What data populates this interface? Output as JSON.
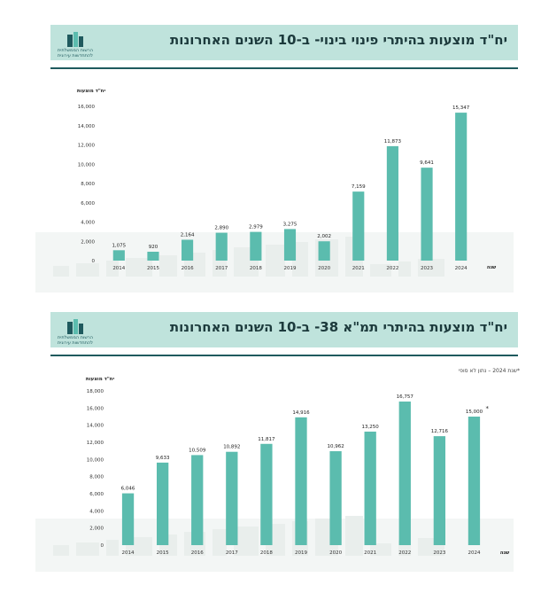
{
  "panels": [
    {
      "title": "יח\"ד מוצעות בהיתרי פינוי בינוי- ב-10 השנים האחרונות",
      "logo_text": [
        "הרשות הממשלתית",
        "להתחדשות עירונית"
      ],
      "note": "",
      "chart_data": {
        "type": "bar",
        "title": "יח\"ד מוצעות בהיתרי פינוי בינוי- ב-10 השנים האחרונות",
        "ylabel": "יח\"ד מוצעות",
        "xlabel": "שנה",
        "categories": [
          "2014",
          "2015",
          "2016",
          "2017",
          "2018",
          "2019",
          "2020",
          "2021",
          "2022",
          "2023",
          "2024"
        ],
        "values": [
          1075,
          920,
          2164,
          2890,
          2979,
          3275,
          2002,
          7159,
          11873,
          9641,
          15347
        ],
        "value_labels": [
          "1,075",
          "920",
          "2,164",
          "2,890",
          "2,979",
          "3,275",
          "2,002",
          "7,159",
          "11,873",
          "9,641",
          "15,347"
        ],
        "ylim": [
          0,
          16000
        ],
        "yticks": [
          0,
          2000,
          4000,
          6000,
          8000,
          10000,
          12000,
          14000,
          16000
        ],
        "ytick_labels": [
          "0",
          "2,000",
          "4,000",
          "6,000",
          "8,000",
          "10,000",
          "12,000",
          "14,000",
          "16,000"
        ],
        "grid": false,
        "bar_color": "#5bbcae"
      }
    },
    {
      "title": "יח\"ד מוצעות בהיתרי תמ\"א 38- ב-10 השנים האחרונות",
      "logo_text": [
        "הרשות הממשלתית",
        "להתחדשות עירונית"
      ],
      "note": "*שנת 2024 – נתון לא סופי",
      "chart_data": {
        "type": "bar",
        "title": "יח\"ד מוצעות בהיתרי תמ\"א 38- ב-10 השנים האחרונות",
        "ylabel": "יח\"ד מוצעות",
        "xlabel": "שנה",
        "categories": [
          "2014",
          "2015",
          "2016",
          "2017",
          "2018",
          "2019",
          "2020",
          "2021",
          "2022",
          "2023",
          "2024"
        ],
        "values": [
          6046,
          9633,
          10509,
          10892,
          11817,
          14916,
          10962,
          13250,
          16757,
          12716,
          15000
        ],
        "value_labels": [
          "6,046",
          "9,633",
          "10,509",
          "10,892",
          "11,817",
          "14,916",
          "10,962",
          "13,250",
          "16,757",
          "12,716",
          "15,000"
        ],
        "value_label_suffix_last": "*",
        "ylim": [
          0,
          18000
        ],
        "yticks": [
          0,
          2000,
          4000,
          6000,
          8000,
          10000,
          12000,
          14000,
          16000,
          18000
        ],
        "ytick_labels": [
          "0",
          "2,000",
          "4,000",
          "6,000",
          "8,000",
          "10,000",
          "12,000",
          "14,000",
          "16,000",
          "18,000"
        ],
        "grid": false,
        "bar_color": "#5bbcae"
      }
    }
  ]
}
